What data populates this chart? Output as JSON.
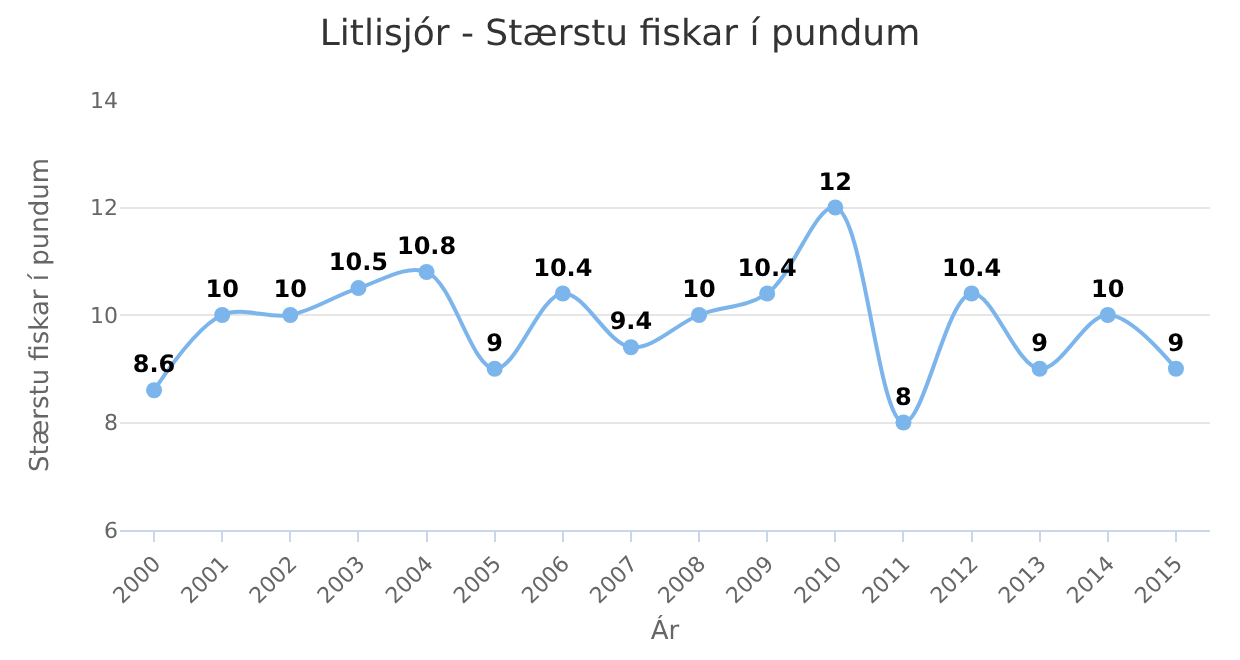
{
  "chart_data": {
    "type": "line",
    "title": "Litlisjór - Stærstu fiskar í pundum",
    "xlabel": "Ár",
    "ylabel": "Stærstu fiskar í pundum",
    "categories": [
      "2000",
      "2001",
      "2002",
      "2003",
      "2004",
      "2005",
      "2006",
      "2007",
      "2008",
      "2009",
      "2010",
      "2011",
      "2012",
      "2013",
      "2014",
      "2015"
    ],
    "series": [
      {
        "color": "#7cb5ec",
        "values": [
          8.6,
          10,
          10,
          10.5,
          10.8,
          9,
          10.4,
          9.4,
          10,
          10.4,
          12,
          8,
          10.4,
          9,
          10,
          9
        ]
      }
    ],
    "ylim": [
      6,
      14
    ],
    "yticks": [
      6,
      8,
      10,
      12,
      14
    ],
    "grid": "y",
    "legend": false,
    "marker": "circle",
    "line_style": "solid",
    "data_labels": true
  }
}
